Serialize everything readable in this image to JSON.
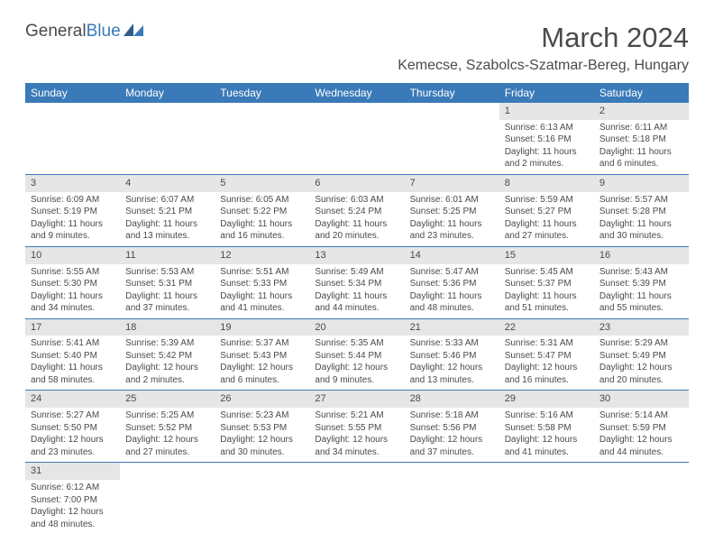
{
  "logo": {
    "general": "General",
    "blue": "Blue"
  },
  "title": "March 2024",
  "location": "Kemecse, Szabolcs-Szatmar-Bereg, Hungary",
  "colors": {
    "header_bg": "#3a7ab8",
    "daynum_bg": "#e6e6e6",
    "text": "#4a4a4a",
    "page_bg": "#ffffff",
    "row_border": "#3a7ab8"
  },
  "weekdays": [
    "Sunday",
    "Monday",
    "Tuesday",
    "Wednesday",
    "Thursday",
    "Friday",
    "Saturday"
  ],
  "weeks": [
    [
      null,
      null,
      null,
      null,
      null,
      {
        "n": "1",
        "sr": "Sunrise: 6:13 AM",
        "ss": "Sunset: 5:16 PM",
        "dl": "Daylight: 11 hours and 2 minutes."
      },
      {
        "n": "2",
        "sr": "Sunrise: 6:11 AM",
        "ss": "Sunset: 5:18 PM",
        "dl": "Daylight: 11 hours and 6 minutes."
      }
    ],
    [
      {
        "n": "3",
        "sr": "Sunrise: 6:09 AM",
        "ss": "Sunset: 5:19 PM",
        "dl": "Daylight: 11 hours and 9 minutes."
      },
      {
        "n": "4",
        "sr": "Sunrise: 6:07 AM",
        "ss": "Sunset: 5:21 PM",
        "dl": "Daylight: 11 hours and 13 minutes."
      },
      {
        "n": "5",
        "sr": "Sunrise: 6:05 AM",
        "ss": "Sunset: 5:22 PM",
        "dl": "Daylight: 11 hours and 16 minutes."
      },
      {
        "n": "6",
        "sr": "Sunrise: 6:03 AM",
        "ss": "Sunset: 5:24 PM",
        "dl": "Daylight: 11 hours and 20 minutes."
      },
      {
        "n": "7",
        "sr": "Sunrise: 6:01 AM",
        "ss": "Sunset: 5:25 PM",
        "dl": "Daylight: 11 hours and 23 minutes."
      },
      {
        "n": "8",
        "sr": "Sunrise: 5:59 AM",
        "ss": "Sunset: 5:27 PM",
        "dl": "Daylight: 11 hours and 27 minutes."
      },
      {
        "n": "9",
        "sr": "Sunrise: 5:57 AM",
        "ss": "Sunset: 5:28 PM",
        "dl": "Daylight: 11 hours and 30 minutes."
      }
    ],
    [
      {
        "n": "10",
        "sr": "Sunrise: 5:55 AM",
        "ss": "Sunset: 5:30 PM",
        "dl": "Daylight: 11 hours and 34 minutes."
      },
      {
        "n": "11",
        "sr": "Sunrise: 5:53 AM",
        "ss": "Sunset: 5:31 PM",
        "dl": "Daylight: 11 hours and 37 minutes."
      },
      {
        "n": "12",
        "sr": "Sunrise: 5:51 AM",
        "ss": "Sunset: 5:33 PM",
        "dl": "Daylight: 11 hours and 41 minutes."
      },
      {
        "n": "13",
        "sr": "Sunrise: 5:49 AM",
        "ss": "Sunset: 5:34 PM",
        "dl": "Daylight: 11 hours and 44 minutes."
      },
      {
        "n": "14",
        "sr": "Sunrise: 5:47 AM",
        "ss": "Sunset: 5:36 PM",
        "dl": "Daylight: 11 hours and 48 minutes."
      },
      {
        "n": "15",
        "sr": "Sunrise: 5:45 AM",
        "ss": "Sunset: 5:37 PM",
        "dl": "Daylight: 11 hours and 51 minutes."
      },
      {
        "n": "16",
        "sr": "Sunrise: 5:43 AM",
        "ss": "Sunset: 5:39 PM",
        "dl": "Daylight: 11 hours and 55 minutes."
      }
    ],
    [
      {
        "n": "17",
        "sr": "Sunrise: 5:41 AM",
        "ss": "Sunset: 5:40 PM",
        "dl": "Daylight: 11 hours and 58 minutes."
      },
      {
        "n": "18",
        "sr": "Sunrise: 5:39 AM",
        "ss": "Sunset: 5:42 PM",
        "dl": "Daylight: 12 hours and 2 minutes."
      },
      {
        "n": "19",
        "sr": "Sunrise: 5:37 AM",
        "ss": "Sunset: 5:43 PM",
        "dl": "Daylight: 12 hours and 6 minutes."
      },
      {
        "n": "20",
        "sr": "Sunrise: 5:35 AM",
        "ss": "Sunset: 5:44 PM",
        "dl": "Daylight: 12 hours and 9 minutes."
      },
      {
        "n": "21",
        "sr": "Sunrise: 5:33 AM",
        "ss": "Sunset: 5:46 PM",
        "dl": "Daylight: 12 hours and 13 minutes."
      },
      {
        "n": "22",
        "sr": "Sunrise: 5:31 AM",
        "ss": "Sunset: 5:47 PM",
        "dl": "Daylight: 12 hours and 16 minutes."
      },
      {
        "n": "23",
        "sr": "Sunrise: 5:29 AM",
        "ss": "Sunset: 5:49 PM",
        "dl": "Daylight: 12 hours and 20 minutes."
      }
    ],
    [
      {
        "n": "24",
        "sr": "Sunrise: 5:27 AM",
        "ss": "Sunset: 5:50 PM",
        "dl": "Daylight: 12 hours and 23 minutes."
      },
      {
        "n": "25",
        "sr": "Sunrise: 5:25 AM",
        "ss": "Sunset: 5:52 PM",
        "dl": "Daylight: 12 hours and 27 minutes."
      },
      {
        "n": "26",
        "sr": "Sunrise: 5:23 AM",
        "ss": "Sunset: 5:53 PM",
        "dl": "Daylight: 12 hours and 30 minutes."
      },
      {
        "n": "27",
        "sr": "Sunrise: 5:21 AM",
        "ss": "Sunset: 5:55 PM",
        "dl": "Daylight: 12 hours and 34 minutes."
      },
      {
        "n": "28",
        "sr": "Sunrise: 5:18 AM",
        "ss": "Sunset: 5:56 PM",
        "dl": "Daylight: 12 hours and 37 minutes."
      },
      {
        "n": "29",
        "sr": "Sunrise: 5:16 AM",
        "ss": "Sunset: 5:58 PM",
        "dl": "Daylight: 12 hours and 41 minutes."
      },
      {
        "n": "30",
        "sr": "Sunrise: 5:14 AM",
        "ss": "Sunset: 5:59 PM",
        "dl": "Daylight: 12 hours and 44 minutes."
      }
    ],
    [
      {
        "n": "31",
        "sr": "Sunrise: 6:12 AM",
        "ss": "Sunset: 7:00 PM",
        "dl": "Daylight: 12 hours and 48 minutes."
      },
      null,
      null,
      null,
      null,
      null,
      null
    ]
  ]
}
